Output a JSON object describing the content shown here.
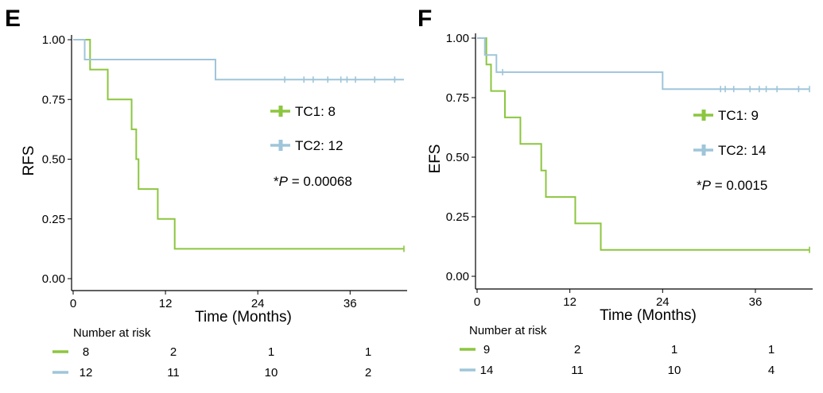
{
  "chart_data": [
    {
      "type": "line",
      "panel": "E",
      "ylabel": "RFS",
      "xlabel": "Time (Months)",
      "xlim": [
        0,
        43
      ],
      "ylim": [
        0,
        1
      ],
      "x_ticks": [
        "0",
        "12",
        "24",
        "36"
      ],
      "y_ticks": [
        "0.00",
        "0.25",
        "0.50",
        "0.75",
        "1.00"
      ],
      "grid": false,
      "legend_placement": "center-right",
      "p_value": {
        "prefix": "*",
        "label": "P",
        "text": " = 0.00068"
      },
      "series": [
        {
          "name": "TC1: 8",
          "color": "#8cc63f",
          "steps": [
            [
              0,
              1.0
            ],
            [
              2.2,
              0.875
            ],
            [
              4.5,
              0.75
            ],
            [
              7.6,
              0.625
            ],
            [
              8.2,
              0.5
            ],
            [
              8.5,
              0.375
            ],
            [
              11.0,
              0.25
            ],
            [
              13.2,
              0.125
            ],
            [
              43,
              0.125
            ]
          ],
          "censors": [
            43
          ]
        },
        {
          "name": "TC2: 12",
          "color": "#9fc5d9",
          "steps": [
            [
              0,
              1.0
            ],
            [
              1.5,
              0.917
            ],
            [
              18.5,
              0.833
            ],
            [
              43,
              0.833
            ]
          ],
          "censors": [
            27.5,
            30.0,
            31.2,
            33.1,
            34.8,
            35.6,
            36.7,
            39.2,
            41.8
          ]
        }
      ],
      "risk_table": {
        "title": "Number at risk",
        "rows": [
          {
            "color": "#8cc63f",
            "values": [
              "8",
              "2",
              "1",
              "1"
            ]
          },
          {
            "color": "#9fc5d9",
            "values": [
              "12",
              "11",
              "10",
              "2"
            ]
          }
        ]
      }
    },
    {
      "type": "line",
      "panel": "F",
      "ylabel": "EFS",
      "xlabel": "Time (Months)",
      "xlim": [
        0,
        43
      ],
      "ylim": [
        0,
        1
      ],
      "x_ticks": [
        "0",
        "12",
        "24",
        "36"
      ],
      "y_ticks": [
        "0.00",
        "0.25",
        "0.50",
        "0.75",
        "1.00"
      ],
      "grid": false,
      "legend_placement": "center-right",
      "p_value": {
        "prefix": "*",
        "label": "P",
        "text": " = 0.0015"
      },
      "series": [
        {
          "name": "TC1: 9",
          "color": "#8cc63f",
          "steps": [
            [
              0,
              1.0
            ],
            [
              1.2,
              0.889
            ],
            [
              1.8,
              0.778
            ],
            [
              3.6,
              0.667
            ],
            [
              5.6,
              0.556
            ],
            [
              8.3,
              0.444
            ],
            [
              8.9,
              0.333
            ],
            [
              12.7,
              0.222
            ],
            [
              16.0,
              0.111
            ],
            [
              43,
              0.111
            ]
          ],
          "censors": [
            43
          ]
        },
        {
          "name": "TC2: 14",
          "color": "#9fc5d9",
          "steps": [
            [
              0,
              1.0
            ],
            [
              1.0,
              0.929
            ],
            [
              2.5,
              0.857
            ],
            [
              24.0,
              0.786
            ],
            [
              43,
              0.786
            ]
          ],
          "censors": [
            3.3,
            31.5,
            32.1,
            33.2,
            35.3,
            36.5,
            37.4,
            38.8,
            41.6,
            43
          ]
        }
      ],
      "risk_table": {
        "title": "Number at risk",
        "rows": [
          {
            "color": "#8cc63f",
            "values": [
              "9",
              "2",
              "1",
              "1"
            ]
          },
          {
            "color": "#9fc5d9",
            "values": [
              "14",
              "11",
              "10",
              "4"
            ]
          }
        ]
      }
    }
  ]
}
